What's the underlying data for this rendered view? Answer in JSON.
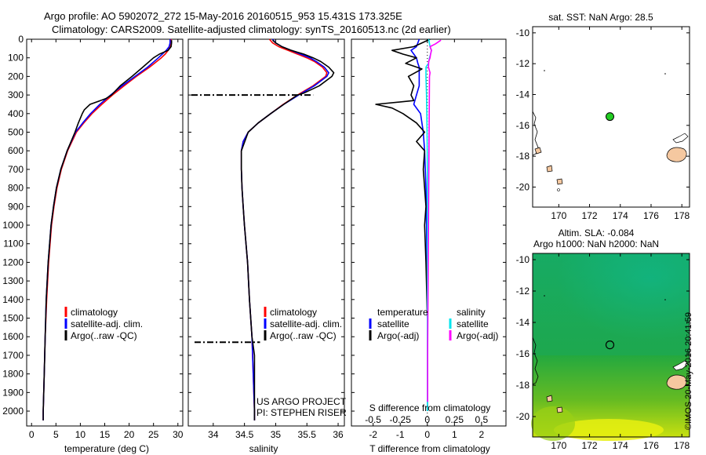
{
  "header": {
    "line1": "Argo profile: AO 5902072_272 15-May-2016 20160515_953 15.431S 173.325E",
    "line2": "Climatology: CARS2009. Satellite-adjusted climatology: synTS_20160513.nc (2d earlier)"
  },
  "side_label": "©IMOS 20-May-2016 20:41:59",
  "colors": {
    "climatology": "#ff0000",
    "satellite": "#0000ff",
    "argo": "#000000",
    "sat_salinity": "#00e5ee",
    "argo_salinity": "#ff00ff",
    "float_marker": "#22cc22",
    "land": "#f5c8a0"
  },
  "chart_data": [
    {
      "id": "temperature",
      "type": "line",
      "xlabel": "temperature (deg C)",
      "xlim": [
        -1,
        31
      ],
      "xticks": [
        "0",
        "5",
        "10",
        "15",
        "20",
        "25",
        "30"
      ],
      "ylim": [
        2080,
        0
      ],
      "yticks": [
        "0",
        "100",
        "200",
        "300",
        "400",
        "500",
        "600",
        "700",
        "800",
        "900",
        "1000",
        "1100",
        "1200",
        "1300",
        "1400",
        "1500",
        "1600",
        "1700",
        "1800",
        "1900",
        "2000"
      ],
      "legend": [
        "climatology",
        "satellite-adj. clim.",
        "Argo(..raw -QC)"
      ],
      "series": [
        {
          "name": "climatology",
          "color": "#ff0000",
          "depth": [
            0,
            20,
            40,
            60,
            80,
            100,
            150,
            200,
            250,
            300,
            350,
            400,
            450,
            500,
            600,
            700,
            800,
            900,
            1000,
            1200,
            1400,
            1600,
            1800,
            2000,
            2050
          ],
          "values": [
            28.6,
            28.6,
            28.4,
            28.0,
            27.4,
            26.6,
            24.2,
            21.5,
            19.0,
            16.6,
            14.4,
            12.4,
            10.7,
            9.2,
            7.4,
            6.1,
            5.2,
            4.6,
            4.1,
            3.5,
            3.1,
            2.8,
            2.6,
            2.4,
            2.4
          ]
        },
        {
          "name": "satellite-adj. clim.",
          "color": "#0000ff",
          "depth": [
            0,
            20,
            40,
            60,
            80,
            100,
            150,
            200,
            250,
            300,
            350,
            400,
            450,
            500,
            600,
            700,
            800,
            900,
            1000,
            1200,
            1400,
            1600,
            1800,
            2000,
            2050
          ],
          "values": [
            28.4,
            28.4,
            28.2,
            27.6,
            26.8,
            26.0,
            23.8,
            21.2,
            18.6,
            16.2,
            14.0,
            12.1,
            10.5,
            9.0,
            7.3,
            6.0,
            5.1,
            4.5,
            4.0,
            3.4,
            3.0,
            2.8,
            2.6,
            2.4,
            2.4
          ]
        },
        {
          "name": "Argo(..raw -QC)",
          "color": "#000000",
          "depth": [
            5,
            20,
            40,
            60,
            80,
            100,
            150,
            200,
            250,
            300,
            320,
            350,
            380,
            400,
            450,
            500,
            600,
            700,
            800,
            900,
            1000,
            1200,
            1400,
            1600,
            1800,
            2000,
            2050
          ],
          "values": [
            28.7,
            28.7,
            28.6,
            28.0,
            26.2,
            25.0,
            22.8,
            20.6,
            18.2,
            16.4,
            15.2,
            12.0,
            10.8,
            10.4,
            9.6,
            8.9,
            7.3,
            6.0,
            5.1,
            4.5,
            4.0,
            3.4,
            3.0,
            2.8,
            2.6,
            2.4,
            2.4
          ]
        }
      ]
    },
    {
      "id": "salinity",
      "type": "line",
      "xlabel": "salinity",
      "xlim": [
        33.6,
        36.1
      ],
      "xticks": [
        "34",
        "34.5",
        "35",
        "35.5",
        "36"
      ],
      "ylim": [
        2080,
        0
      ],
      "legend": [
        "climatology",
        "satellite-adj. clim.",
        "Argo(..raw -QC)"
      ],
      "annotation": [
        "US ARGO PROJECT",
        "PI: STEPHEN RISER"
      ],
      "series": [
        {
          "name": "climatology",
          "color": "#ff0000",
          "depth": [
            0,
            20,
            40,
            60,
            80,
            100,
            120,
            150,
            180,
            200,
            250,
            300,
            350,
            400,
            450,
            500,
            550,
            600,
            700,
            800,
            900,
            1000,
            1200,
            1400,
            1600,
            1800,
            2000,
            2050
          ],
          "values": [
            34.9,
            34.95,
            35.05,
            35.2,
            35.35,
            35.5,
            35.62,
            35.75,
            35.82,
            35.8,
            35.6,
            35.35,
            35.12,
            34.92,
            34.72,
            34.56,
            34.48,
            34.45,
            34.45,
            34.46,
            34.48,
            34.5,
            34.55,
            34.58,
            34.62,
            34.64,
            34.66,
            34.66
          ]
        },
        {
          "name": "satellite-adj. clim.",
          "color": "#0000ff",
          "depth": [
            0,
            20,
            40,
            60,
            80,
            100,
            120,
            150,
            180,
            200,
            250,
            300,
            350,
            400,
            450,
            500,
            550,
            600,
            700,
            800,
            900,
            1000,
            1200,
            1400,
            1600,
            1800,
            2000,
            2050
          ],
          "values": [
            34.95,
            35.0,
            35.1,
            35.25,
            35.4,
            35.55,
            35.65,
            35.78,
            35.85,
            35.82,
            35.62,
            35.37,
            35.13,
            34.92,
            34.72,
            34.56,
            34.48,
            34.45,
            34.45,
            34.46,
            34.48,
            34.5,
            34.55,
            34.58,
            34.62,
            34.64,
            34.66,
            34.66
          ]
        },
        {
          "name": "Argo(..raw -QC)",
          "color": "#000000",
          "depth": [
            5,
            20,
            40,
            60,
            80,
            100,
            120,
            150,
            180,
            200,
            250,
            290,
            300,
            350,
            400,
            450,
            500,
            600,
            700,
            800,
            900,
            1000,
            1200,
            1400,
            1600,
            1700,
            1800,
            2000,
            2050
          ],
          "values": [
            34.95,
            35.0,
            35.1,
            35.25,
            35.45,
            35.6,
            35.72,
            35.85,
            35.93,
            35.9,
            35.7,
            35.45,
            35.35,
            35.13,
            34.92,
            34.72,
            34.56,
            34.45,
            34.45,
            34.46,
            34.48,
            34.5,
            34.55,
            34.58,
            34.62,
            34.66,
            34.66,
            34.66,
            34.66
          ]
        },
        {
          "name": "Argo(..raw -QC) flagged",
          "color": "#000000",
          "style": "dashdot",
          "depth": [
            300,
            300
          ],
          "values": [
            33.65,
            35.6
          ]
        },
        {
          "name": "Argo(..raw -QC) flagged",
          "color": "#000000",
          "style": "dashdot",
          "depth": [
            1630,
            1630
          ],
          "values": [
            33.7,
            34.75
          ]
        }
      ]
    },
    {
      "id": "difference",
      "type": "line",
      "xlabel": "T difference from climatology",
      "xlabel_top": "S difference from climatology",
      "xlim": [
        -2.8,
        2.9
      ],
      "xticks": [
        "-2",
        "-1",
        "0",
        "1",
        "2"
      ],
      "xticks_top": [
        "-0.5",
        "-0.25",
        "0",
        "0.25",
        "0.5"
      ],
      "ylim": [
        2080,
        0
      ],
      "legend_headers": [
        "temperature",
        "salinity"
      ],
      "legend": [
        "satellite",
        "Argo(-adj)",
        "satellite",
        "Argo(-adj)"
      ],
      "series": [
        {
          "name": "temperature satellite",
          "color": "#0000ff",
          "depth": [
            0,
            40,
            60,
            80,
            100,
            130,
            150,
            200,
            250,
            300,
            350,
            400,
            500,
            600,
            800,
            1000,
            1500,
            2000
          ],
          "values": [
            -0.3,
            -0.4,
            -0.6,
            -0.5,
            -0.4,
            -0.35,
            -0.3,
            -0.3,
            -0.3,
            -0.4,
            -0.5,
            -0.25,
            -0.15,
            -0.1,
            -0.05,
            -0.03,
            0,
            0
          ]
        },
        {
          "name": "temperature Argo(-adj)",
          "color": "#000000",
          "depth": [
            0,
            40,
            60,
            80,
            100,
            130,
            160,
            200,
            250,
            300,
            330,
            350,
            370,
            400,
            450,
            500,
            550,
            600,
            700,
            800,
            900,
            1000,
            1200,
            1500,
            1800,
            2000
          ],
          "values": [
            0.1,
            -0.5,
            -1.3,
            -0.9,
            -0.4,
            -0.8,
            -0.2,
            -0.7,
            -0.5,
            -0.6,
            -0.5,
            -1.9,
            -1.3,
            -0.9,
            -0.4,
            -0.1,
            -0.4,
            -0.1,
            -0.15,
            -0.1,
            -0.05,
            -0.1,
            -0.05,
            0,
            0,
            0
          ]
        },
        {
          "name": "salinity satellite",
          "color": "#00e5ee",
          "depth": [
            0,
            40,
            60,
            80,
            100,
            130,
            150,
            200,
            300,
            400,
            500,
            700,
            1000,
            1500,
            2000
          ],
          "values": [
            0.05,
            0.1,
            0.15,
            0.12,
            0.08,
            0.04,
            -0.05,
            -0.05,
            -0.03,
            -0.02,
            -0.01,
            0,
            0,
            0,
            0
          ]
        },
        {
          "name": "salinity Argo(-adj)",
          "color": "#ff00ff",
          "depth": [
            5,
            25,
            40,
            60,
            80,
            100,
            120,
            150,
            180,
            200,
            1700,
            1800,
            1900,
            1950
          ],
          "values": [
            0.5,
            0.3,
            0.1,
            0.15,
            0.12,
            0.1,
            0.05,
            0.04,
            0.1,
            0.08,
            0.01,
            0.01,
            0.01,
            0.01
          ]
        }
      ]
    },
    {
      "id": "map-sst",
      "type": "scatter",
      "title": "sat. SST: NaN Argo: 28.5",
      "xlim": [
        168.3,
        178.5
      ],
      "ylim": [
        -21.3,
        -9.6
      ],
      "xticks": [
        "170",
        "172",
        "174",
        "176",
        "178"
      ],
      "yticks": [
        "-10",
        "-12",
        "-14",
        "-16",
        "-18",
        "-20"
      ],
      "x": [
        173.325
      ],
      "y": [
        -15.431
      ]
    },
    {
      "id": "map-sla",
      "type": "heatmap",
      "title_line1": "Altim. SLA: -0.084",
      "title_line2": "Argo h1000: NaN h2000: NaN",
      "xlim": [
        168.3,
        178.5
      ],
      "ylim": [
        -21.3,
        -9.6
      ],
      "xticks": [
        "170",
        "172",
        "174",
        "176",
        "178"
      ],
      "yticks": [
        "-10",
        "-12",
        "-14",
        "-16",
        "-18",
        "-20"
      ],
      "x": [
        173.325
      ],
      "y": [
        -15.431
      ]
    }
  ]
}
